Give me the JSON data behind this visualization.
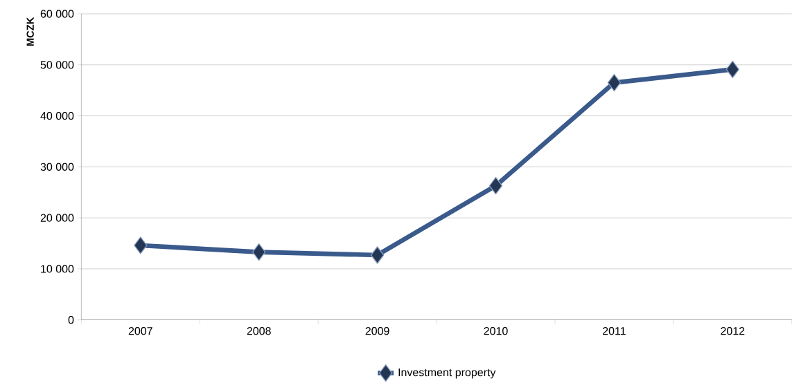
{
  "chart_data": {
    "type": "line",
    "ylabel": "MCZK",
    "categories": [
      "2007",
      "2008",
      "2009",
      "2010",
      "2011",
      "2012"
    ],
    "series": [
      {
        "name": "Investment property",
        "color": "#3a5a8c",
        "values": [
          14600,
          13300,
          12700,
          26300,
          46500,
          49100
        ]
      }
    ],
    "ylim": [
      0,
      60000
    ],
    "yticks": [
      {
        "value": 0,
        "label": "0"
      },
      {
        "value": 10000,
        "label": "10 000"
      },
      {
        "value": 20000,
        "label": "20 000"
      },
      {
        "value": 30000,
        "label": "30 000"
      },
      {
        "value": 40000,
        "label": "40 000"
      },
      {
        "value": 50000,
        "label": "50 000"
      },
      {
        "value": 60000,
        "label": "60 000"
      }
    ],
    "grid": "y",
    "legend": "bottom",
    "marker": "diamond",
    "line_style": "solid"
  }
}
